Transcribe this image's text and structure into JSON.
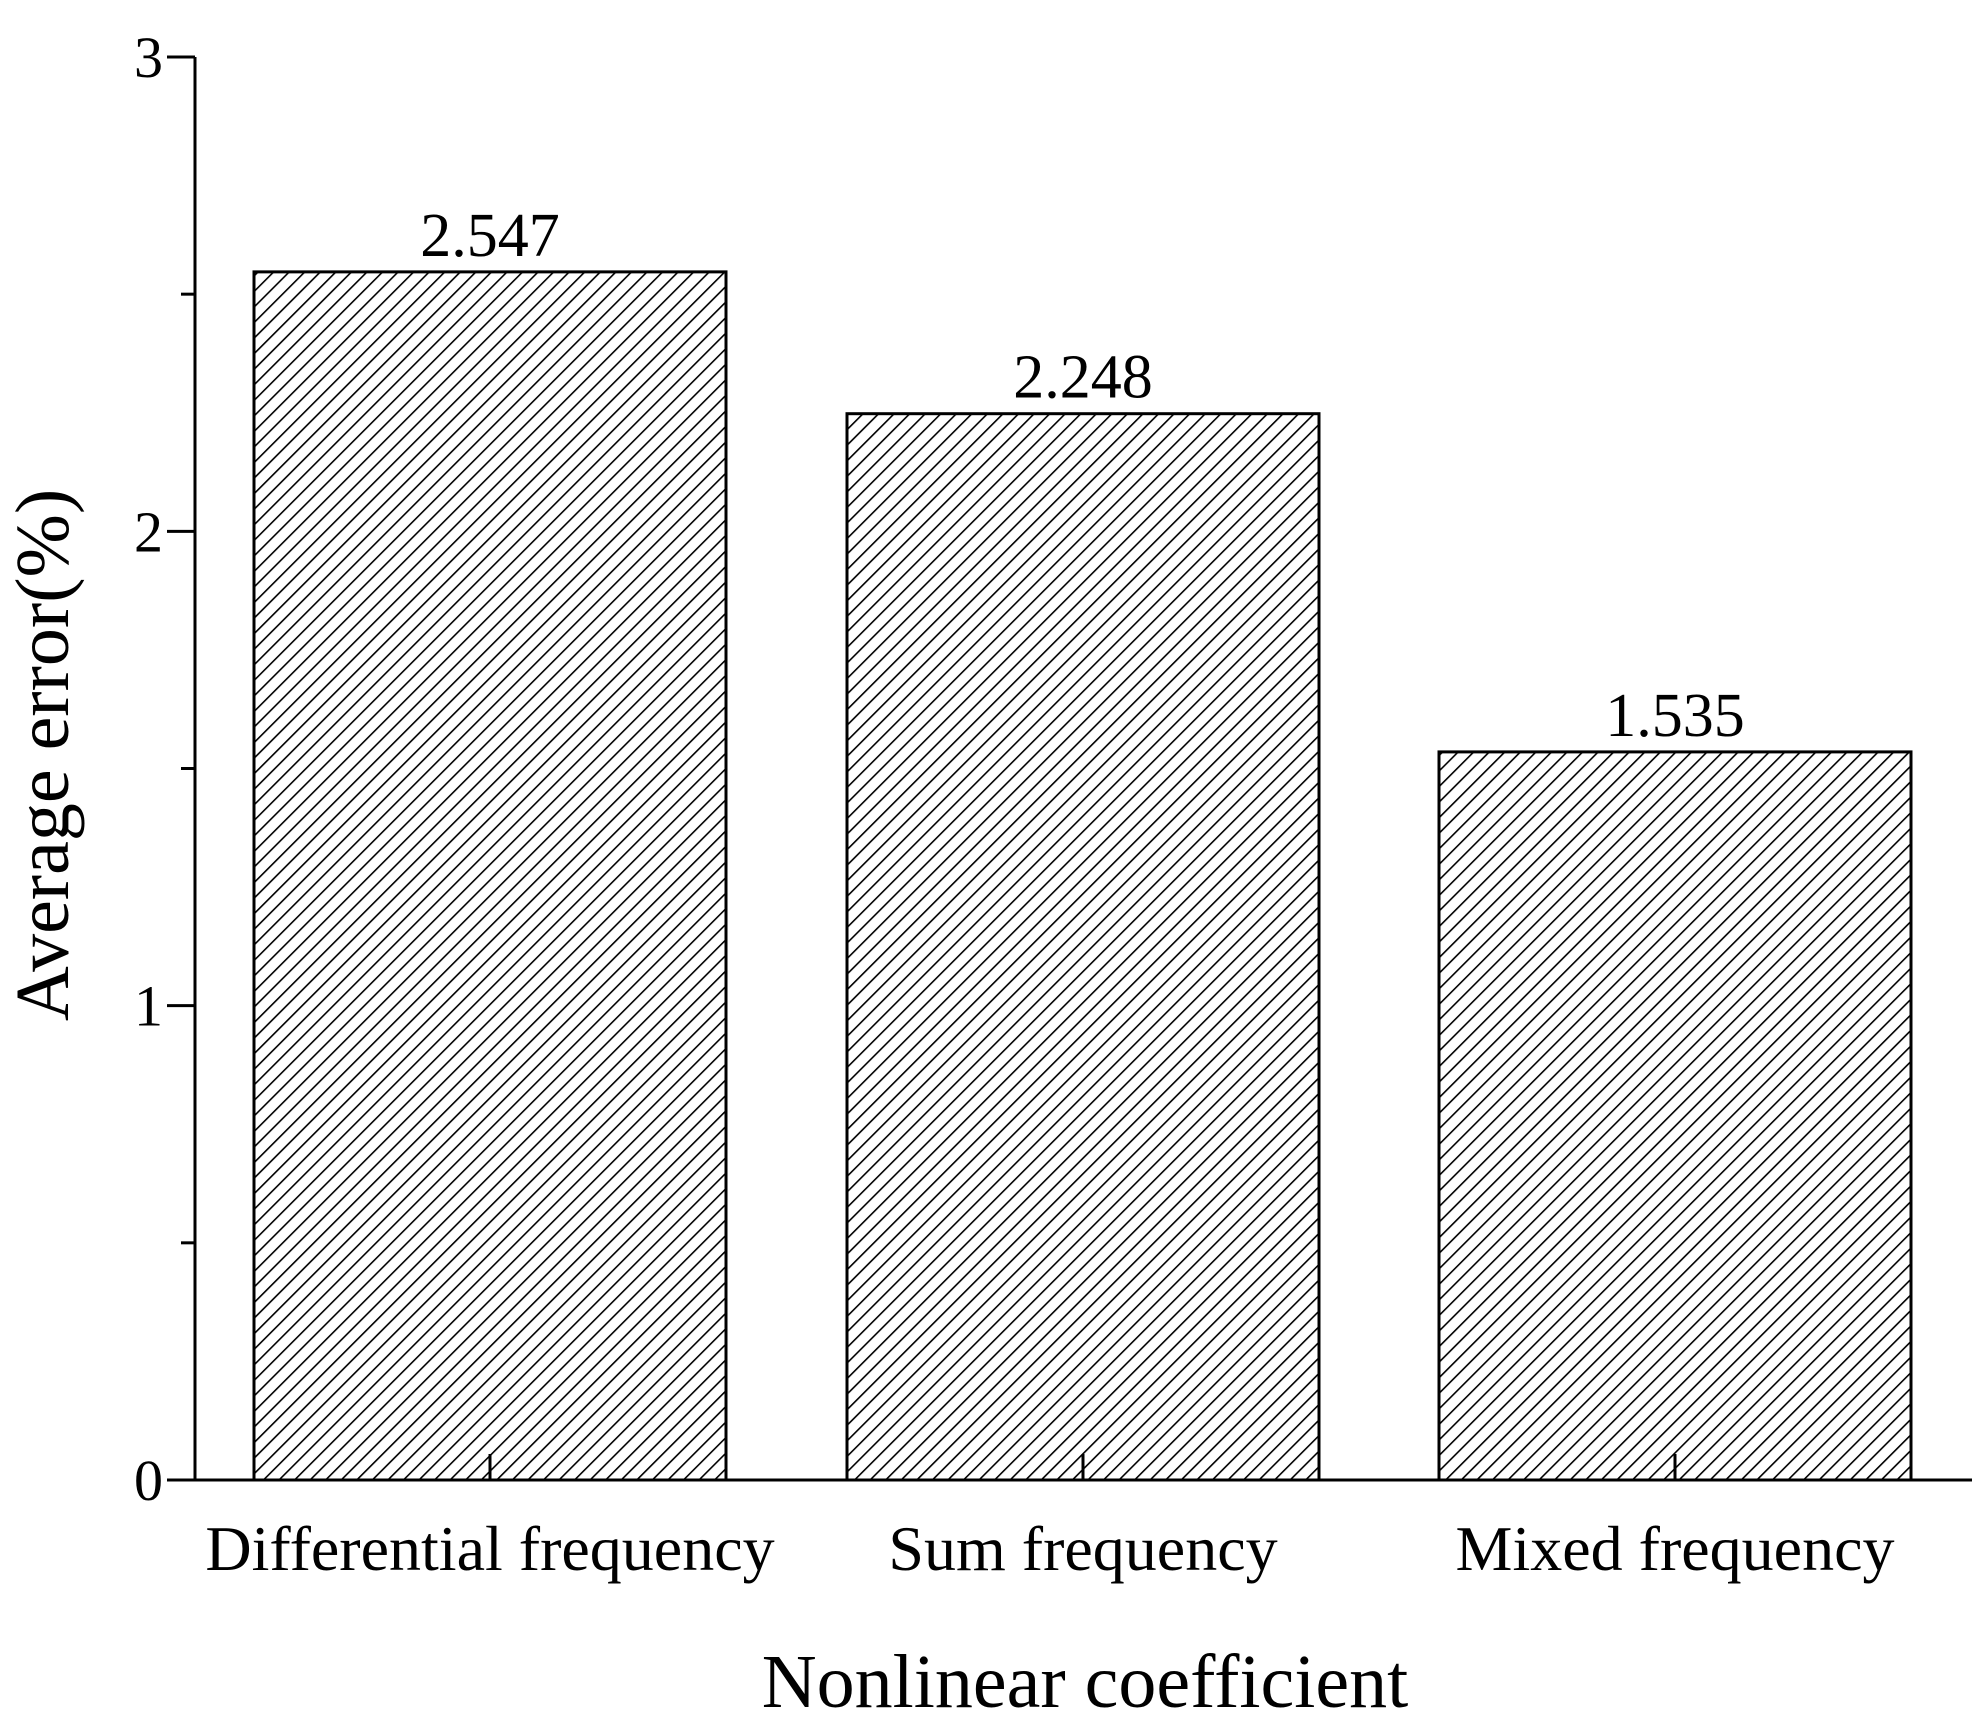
{
  "chart_data": {
    "type": "bar",
    "categories": [
      "Differential frequency",
      "Sum frequency",
      "Mixed frequency"
    ],
    "values": [
      2.547,
      2.248,
      1.535
    ],
    "data_labels": [
      "2.547",
      "2.248",
      "1.535"
    ],
    "xlabel": "Nonlinear coefficient",
    "ylabel": "Average error(%)",
    "ylim": [
      0,
      3
    ],
    "y_ticks": [
      0,
      1,
      2,
      3
    ],
    "y_tick_labels": [
      "0",
      "1",
      "2",
      "3"
    ],
    "y_minor_ticks": [
      0.5,
      1.5,
      2.5
    ],
    "grid": false,
    "legend": "none",
    "bar_fill": "diagonal-hatch",
    "colors": {
      "bar_stroke": "#000000",
      "hatch": "#000000",
      "background": "#ffffff"
    }
  }
}
